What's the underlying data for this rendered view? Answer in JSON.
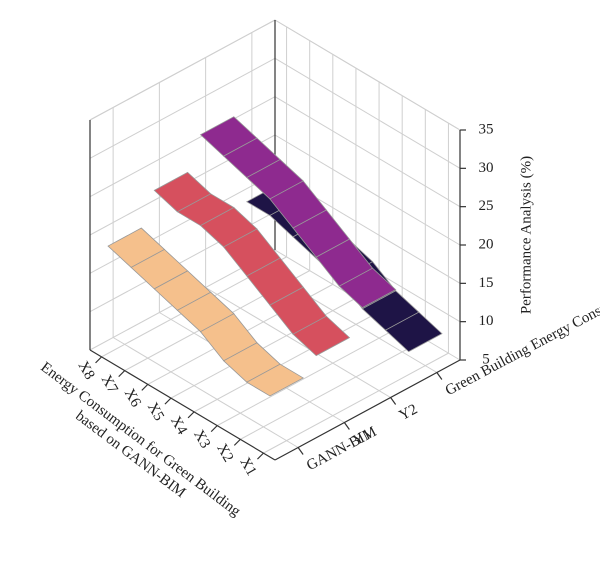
{
  "chart_data": {
    "type": "ribbon3d",
    "xlabel": [
      "Energy Consumption for Green Building",
      "based on GANN-BIM"
    ],
    "zlabel": "Performance Analysis (%)",
    "categories": [
      "X1",
      "X2",
      "X3",
      "X4",
      "X5",
      "X6",
      "X7",
      "X8"
    ],
    "series": [
      {
        "name": "GANN-BIM",
        "color": "#f5c08c",
        "values": [
          12,
          12,
          13,
          15,
          16,
          17,
          18,
          19
        ]
      },
      {
        "name": "Y1",
        "color": "#d6505e",
        "values": [
          14,
          15,
          17,
          19,
          21,
          22,
          22,
          23
        ]
      },
      {
        "name": "Y2",
        "color": "#8e2a8f",
        "values": [
          17,
          18,
          20,
          22,
          24,
          25,
          26,
          27
        ]
      },
      {
        "name": "Green Building Energy Consumption",
        "color": "#1e1446",
        "values": [
          8,
          9,
          10,
          12,
          13,
          14,
          15,
          15
        ]
      }
    ],
    "zlim": [
      5,
      35
    ],
    "zticks": [
      5,
      10,
      15,
      20,
      25,
      30,
      35
    ],
    "grid": true
  }
}
